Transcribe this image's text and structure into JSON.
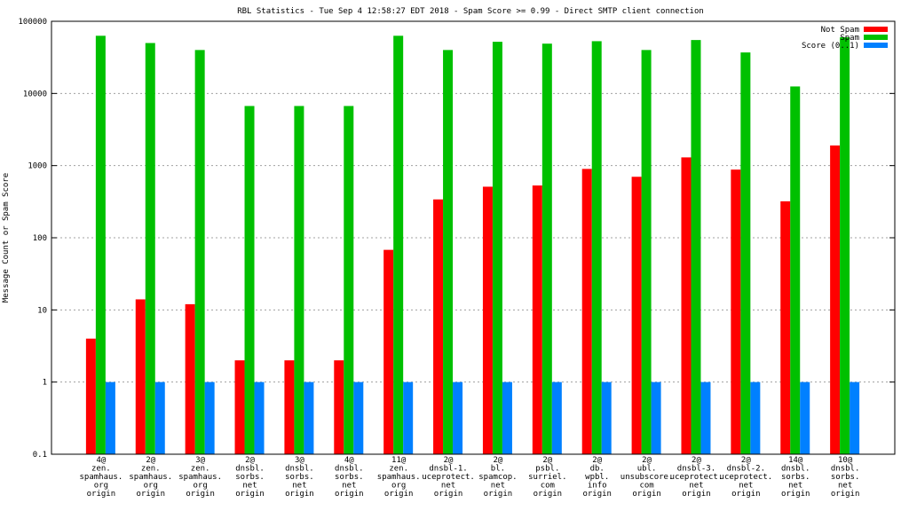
{
  "chart_data": {
    "type": "bar",
    "title": "RBL Statistics - Tue Sep  4 12:58:27 EDT 2018 - Spam Score >= 0.99 - Direct SMTP client connection",
    "xlabel": "",
    "ylabel": "Message Count or Spam Score",
    "yscale": "log",
    "ylim": [
      0.1,
      100000
    ],
    "yticks": [
      "0.1",
      "1",
      "10",
      "100",
      "1000",
      "10000",
      "100000"
    ],
    "ytick_values": [
      0.1,
      1,
      10,
      100,
      1000,
      10000,
      100000
    ],
    "grid": true,
    "legend_position": "top-right",
    "categories": [
      [
        "4@",
        "zen.",
        "spamhaus.",
        "org",
        "origin"
      ],
      [
        "2@",
        "zen.",
        "spamhaus.",
        "org",
        "origin"
      ],
      [
        "3@",
        "zen.",
        "spamhaus.",
        "org",
        "origin"
      ],
      [
        "2@",
        "dnsbl.",
        "sorbs.",
        "net",
        "origin"
      ],
      [
        "3@",
        "dnsbl.",
        "sorbs.",
        "net",
        "origin"
      ],
      [
        "4@",
        "dnsbl.",
        "sorbs.",
        "net",
        "origin"
      ],
      [
        "11@",
        "zen.",
        "spamhaus.",
        "org",
        "origin"
      ],
      [
        "2@",
        "dnsbl-1.",
        "uceprotect.",
        "net",
        "origin"
      ],
      [
        "2@",
        "bl.",
        "spamcop.",
        "net",
        "origin"
      ],
      [
        "2@",
        "psbl.",
        "surriel.",
        "com",
        "origin"
      ],
      [
        "2@",
        "db.",
        "wpbl.",
        "info",
        "origin"
      ],
      [
        "2@",
        "ubl.",
        "unsubscore.",
        "com",
        "origin"
      ],
      [
        "2@",
        "dnsbl-3.",
        "uceprotect.",
        "net",
        "origin"
      ],
      [
        "2@",
        "dnsbl-2.",
        "uceprotect.",
        "net",
        "origin"
      ],
      [
        "14@",
        "dnsbl.",
        "sorbs.",
        "net",
        "origin"
      ],
      [
        "10@",
        "dnsbl.",
        "sorbs.",
        "net",
        "origin"
      ]
    ],
    "series": [
      {
        "name": "Not Spam",
        "color": "#ff0000",
        "values": [
          4,
          14,
          12,
          2,
          2,
          2,
          68,
          340,
          510,
          530,
          900,
          700,
          1300,
          880,
          320,
          1900
        ]
      },
      {
        "name": "Spam",
        "color": "#00c000",
        "values": [
          63000,
          50000,
          40000,
          6700,
          6700,
          6700,
          63000,
          40000,
          52000,
          49000,
          53000,
          40000,
          55000,
          37000,
          12500,
          60000
        ]
      },
      {
        "name": "Score (0..1)",
        "color": "#0080ff",
        "values": [
          1,
          1,
          1,
          1,
          1,
          1,
          1,
          1,
          1,
          1,
          1,
          1,
          1,
          1,
          1,
          1
        ]
      }
    ]
  }
}
